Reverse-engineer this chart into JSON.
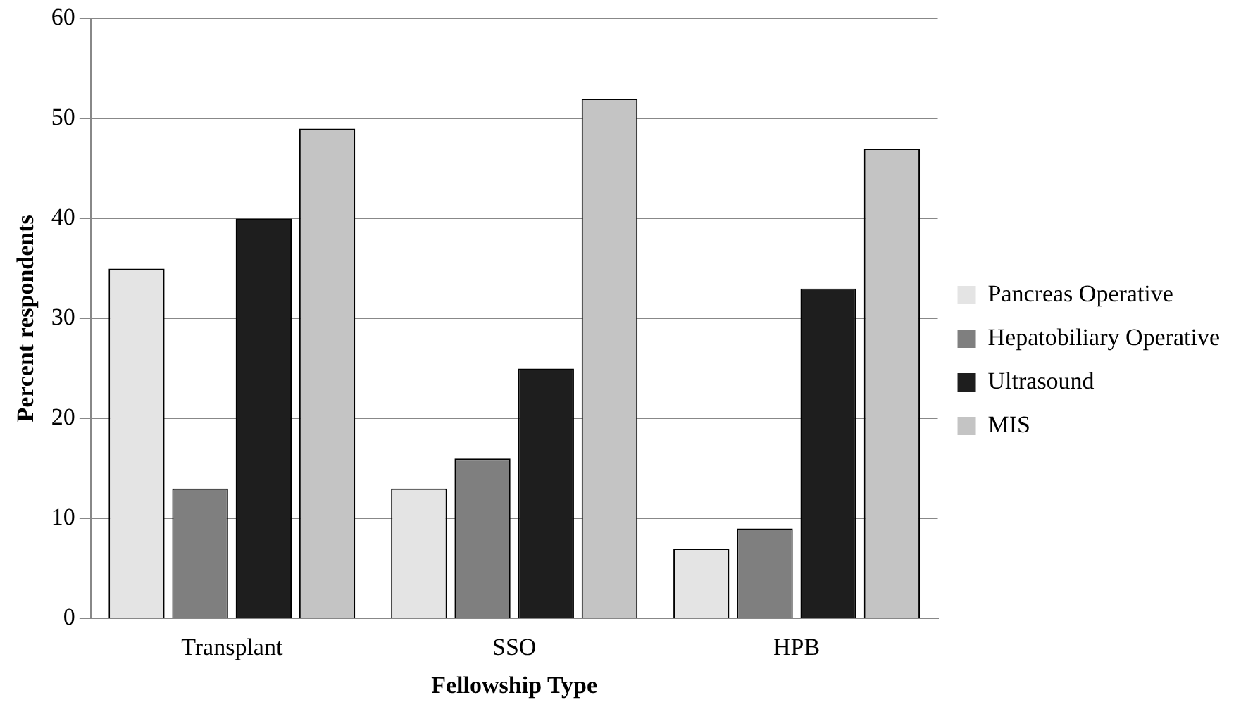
{
  "chart_data": {
    "type": "bar",
    "xlabel": "Fellowship Type",
    "ylabel": "Percent respondents",
    "categories": [
      "Transplant",
      "SSO",
      "HPB"
    ],
    "series": [
      {
        "name": "Pancreas Operative",
        "color": "#e4e4e4",
        "values": [
          35,
          13,
          7
        ]
      },
      {
        "name": "Hepatobiliary Operative",
        "color": "#7f7f7f",
        "values": [
          13,
          16,
          9
        ]
      },
      {
        "name": "Ultrasound",
        "color": "#1e1e1e",
        "values": [
          40,
          25,
          33
        ]
      },
      {
        "name": "MIS",
        "color": "#c4c4c4",
        "values": [
          49,
          52,
          47
        ]
      }
    ],
    "ylim": [
      0,
      60
    ],
    "yticks": [
      0,
      10,
      20,
      30,
      40,
      50,
      60
    ],
    "grid": "y",
    "legend": "right"
  }
}
